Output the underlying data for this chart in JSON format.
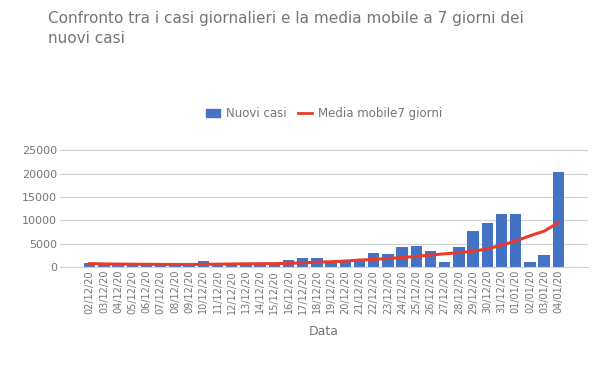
{
  "title": "Confronto tra i casi giornalieri e la media mobile a 7 giorni dei\nnuovi casi",
  "xlabel": "Data",
  "bar_color": "#4472C4",
  "line_color": "#E83B2A",
  "legend_bar_label": "Nuovi casi",
  "legend_line_label": "Media mobile7 giorni",
  "dates": [
    "02/12/20",
    "03/12/20",
    "04/12/20",
    "05/12/20",
    "06/12/20",
    "07/12/20",
    "08/12/20",
    "09/12/20",
    "10/12/20",
    "11/12/20",
    "12/12/20",
    "13/12/20",
    "14/12/20",
    "15/12/20",
    "16/12/20",
    "17/12/20",
    "18/12/20",
    "19/12/20",
    "20/12/20",
    "21/12/20",
    "22/12/20",
    "23/12/20",
    "24/12/20",
    "25/12/20",
    "26/12/20",
    "27/12/20",
    "28/12/20",
    "29/12/20",
    "30/12/20",
    "31/12/20",
    "01/01/20",
    "02/01/20",
    "03/01/20",
    "04/01/20"
  ],
  "new_cases": [
    800,
    500,
    550,
    500,
    550,
    450,
    500,
    600,
    1400,
    700,
    750,
    700,
    850,
    850,
    1600,
    1900,
    2000,
    1300,
    1500,
    1800,
    3000,
    2800,
    4200,
    4500,
    3500,
    1050,
    4200,
    7700,
    9500,
    11400,
    11400,
    1200,
    2500,
    20300
  ],
  "moving_avg": [
    750,
    680,
    650,
    620,
    600,
    580,
    570,
    570,
    590,
    630,
    670,
    710,
    730,
    750,
    810,
    920,
    1050,
    1150,
    1300,
    1500,
    1650,
    1850,
    2050,
    2300,
    2600,
    2850,
    3100,
    3400,
    3900,
    4700,
    5600,
    6700,
    7700,
    9500
  ],
  "ylim": [
    0,
    27000
  ],
  "yticks": [
    0,
    5000,
    10000,
    15000,
    20000,
    25000
  ],
  "background_color": "#ffffff",
  "grid_color": "#d0d0d0",
  "title_color": "#757575",
  "title_fontsize": 11,
  "axis_label_color": "#757575",
  "tick_label_color": "#757575",
  "tick_fontsize": 7,
  "ytick_fontsize": 8
}
